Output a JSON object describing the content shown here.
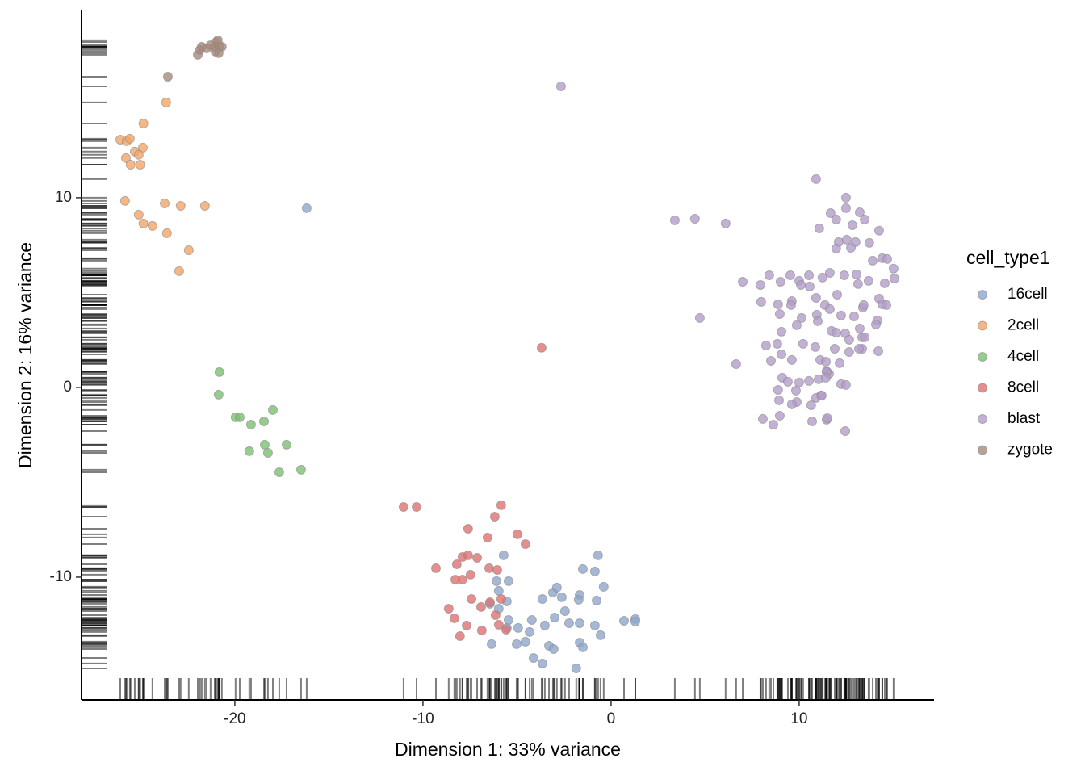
{
  "chart_data": {
    "type": "scatter",
    "x_label": "Dimension 1: 33% variance",
    "y_label": "Dimension 2: 16% variance",
    "legend_title": "cell_type1",
    "legend_position": "right",
    "rug": true,
    "xlim": [
      -28.15,
      17.17
    ],
    "ylim": [
      -16.47,
      19.91
    ],
    "xticks": [
      -20,
      -10,
      0,
      10
    ],
    "yticks": [
      -10,
      0,
      10
    ],
    "series": [
      {
        "name": "16cell",
        "color": "#8fa6cd",
        "x": [
          -16.18,
          -5.71,
          -6.09,
          -5.45,
          -6.44,
          -5.97,
          -5.54,
          -5.97,
          -3.65,
          -3.09,
          -2.88,
          -2.62,
          -1.67,
          -1.5,
          -0.86,
          -0.69,
          -0.39,
          -0.77,
          -1.72,
          -2.45,
          -3.0,
          -3.52,
          -4.21,
          -4.33,
          -4.94,
          -5.54,
          -6.35,
          -5.02,
          -4.55,
          -4.12,
          -3.65,
          -3.3,
          -3.05,
          -2.23,
          -1.67,
          -1.5,
          -1.85,
          -0.86,
          -0.56,
          0.69,
          1.29,
          1.29,
          -5.45,
          -1.67
        ],
        "y": [
          9.45,
          -8.85,
          -10.21,
          -10.21,
          -11.4,
          -10.72,
          -11.28,
          -11.66,
          -11.15,
          -10.81,
          -10.55,
          -11.06,
          -10.94,
          -9.57,
          -9.7,
          -8.85,
          -10.51,
          -11.23,
          -11.19,
          -11.79,
          -12.13,
          -12.55,
          -12.26,
          -12.89,
          -12.68,
          -12.68,
          -13.53,
          -13.53,
          -13.4,
          -14.26,
          -14.55,
          -13.62,
          -13.79,
          -12.43,
          -13.45,
          -13.7,
          -14.81,
          -12.55,
          -13.06,
          -12.3,
          -12.21,
          -12.34,
          -12.26,
          -12.43
        ]
      },
      {
        "name": "2cell",
        "color": "#f4a566",
        "x": [
          -26.09,
          -25.75,
          -25.58,
          -24.86,
          -23.65,
          -24.89,
          -25.32,
          -25.79,
          -25.54,
          -25.03,
          -25.11,
          -25.84,
          -23.73,
          -22.88,
          -21.59,
          -25.11,
          -24.86,
          -24.38,
          -23.61,
          -22.45,
          -22.96
        ],
        "y": [
          13.06,
          12.98,
          13.11,
          13.91,
          15.02,
          12.64,
          12.43,
          12.09,
          11.74,
          11.74,
          12.26,
          9.83,
          9.7,
          9.57,
          9.57,
          9.11,
          8.64,
          8.51,
          8.13,
          7.23,
          6.13
        ]
      },
      {
        "name": "4cell",
        "color": "#7cc073",
        "x": [
          -20.82,
          -20.86,
          -19.96,
          -19.74,
          -19.14,
          -18.45,
          -17.98,
          -19.23,
          -18.41,
          -18.24,
          -17.25,
          -17.64,
          -16.48
        ],
        "y": [
          0.81,
          -0.38,
          -1.57,
          -1.57,
          -1.96,
          -1.79,
          -1.19,
          -3.36,
          -3.02,
          -3.45,
          -3.02,
          -4.47,
          -4.34
        ]
      },
      {
        "name": "8cell",
        "color": "#e07272",
        "x": [
          -3.69,
          -11.03,
          -10.34,
          -5.84,
          -6.18,
          -6.57,
          -7.6,
          -4.98,
          -4.55,
          -9.31,
          -8.2,
          -7.9,
          -7.6,
          -7.12,
          -7.9,
          -8.28,
          -7.47,
          -6.48,
          -6.05,
          -8.63,
          -7.42,
          -6.91,
          -6.44,
          -5.84,
          -8.33,
          -7.68,
          -6.87,
          -8.03,
          -6.14,
          -5.97,
          -5.58
        ],
        "y": [
          2.09,
          -6.3,
          -6.3,
          -6.21,
          -6.81,
          -7.91,
          -7.45,
          -7.74,
          -8.26,
          -9.53,
          -9.32,
          -8.94,
          -8.85,
          -8.98,
          -10.13,
          -10.13,
          -9.87,
          -9.53,
          -9.62,
          -11.66,
          -11.15,
          -11.57,
          -11.32,
          -11.15,
          -12.17,
          -12.55,
          -12.81,
          -13.11,
          -12.0,
          -12.51,
          -12.77
        ]
      },
      {
        "name": "blast",
        "color": "#b39dc9",
        "x": [
          -2.66,
          3.39,
          4.46,
          6.09,
          4.72,
          6.65,
          10.9,
          12.49,
          11.67,
          13.22,
          12.49,
          13.48,
          11.97,
          12.83,
          14.25,
          11.07,
          12.1,
          13.0,
          12.53,
          13.73,
          11.97,
          12.75,
          7.0,
          7.94,
          8.41,
          9.01,
          9.53,
          10.0,
          10.52,
          11.24,
          11.63,
          12.4,
          13.05,
          13.91,
          14.42,
          14.68,
          15.02,
          15.06,
          14.55,
          7.98,
          8.88,
          9.61,
          10.09,
          10.56,
          10.9,
          12.02,
          13.13,
          13.69,
          13.39,
          14.25,
          14.42,
          14.64,
          8.97,
          9.57,
          10.13,
          10.94,
          11.37,
          11.63,
          12.23,
          12.92,
          13.43,
          14.16,
          9.06,
          9.87,
          10.99,
          11.72,
          11.97,
          12.45,
          13.22,
          13.35,
          13.48,
          14.08,
          12.66,
          13.35,
          14.21,
          8.24,
          8.84,
          10.21,
          10.86,
          11.89,
          12.66,
          13.18,
          8.5,
          9.06,
          9.61,
          11.12,
          11.42,
          11.46,
          11.59,
          12.15,
          9.1,
          9.4,
          10.0,
          10.52,
          11.03,
          11.46,
          11.42,
          8.88,
          9.83,
          11.16,
          12.23,
          12.49,
          8.93,
          9.87,
          10.9,
          11.2,
          8.07,
          8.63,
          8.97,
          9.61,
          10.64,
          11.46,
          10.69,
          12.45,
          11.5
        ],
        "y": [
          15.87,
          8.81,
          8.89,
          8.64,
          3.66,
          1.23,
          10.98,
          10.0,
          9.19,
          9.23,
          9.45,
          8.85,
          8.85,
          8.55,
          8.26,
          8.38,
          7.66,
          7.66,
          7.79,
          7.62,
          7.32,
          7.36,
          5.57,
          5.4,
          5.91,
          5.57,
          5.91,
          5.62,
          5.91,
          5.79,
          6.04,
          5.91,
          5.96,
          6.68,
          6.81,
          6.77,
          6.26,
          5.74,
          5.49,
          4.51,
          4.38,
          4.55,
          5.4,
          5.32,
          4.72,
          4.89,
          5.45,
          5.62,
          4.21,
          4.68,
          4.38,
          4.34,
          3.87,
          4.34,
          3.66,
          3.83,
          4.34,
          4.13,
          3.79,
          3.74,
          4.34,
          3.53,
          2.94,
          3.28,
          3.49,
          2.98,
          2.89,
          2.85,
          3.11,
          2.64,
          2.64,
          3.32,
          2.51,
          2.04,
          1.91,
          2.21,
          2.3,
          2.3,
          2.13,
          2.04,
          1.87,
          2.04,
          1.4,
          1.74,
          1.45,
          1.45,
          1.36,
          0.85,
          0.72,
          1.28,
          0.51,
          0.3,
          0.26,
          0.34,
          0.43,
          0.81,
          0.51,
          -0.13,
          -0.17,
          -0.43,
          0.17,
          0.13,
          -0.68,
          -0.77,
          -0.55,
          -0.43,
          -1.66,
          -1.96,
          -1.49,
          -0.89,
          -0.94,
          -1.7,
          -1.79,
          -2.3,
          -1.62
        ]
      },
      {
        "name": "zygote",
        "color": "#a88a7b",
        "x": [
          -21.97,
          -21.85,
          -21.76,
          -21.5,
          -21.29,
          -21.07,
          -20.99,
          -20.9,
          -21.03,
          -20.82,
          -20.69,
          -20.86,
          -23.56
        ],
        "y": [
          17.53,
          17.79,
          17.96,
          17.87,
          18.04,
          17.96,
          18.21,
          18.3,
          17.7,
          17.96,
          17.96,
          17.62,
          16.38
        ]
      }
    ]
  }
}
